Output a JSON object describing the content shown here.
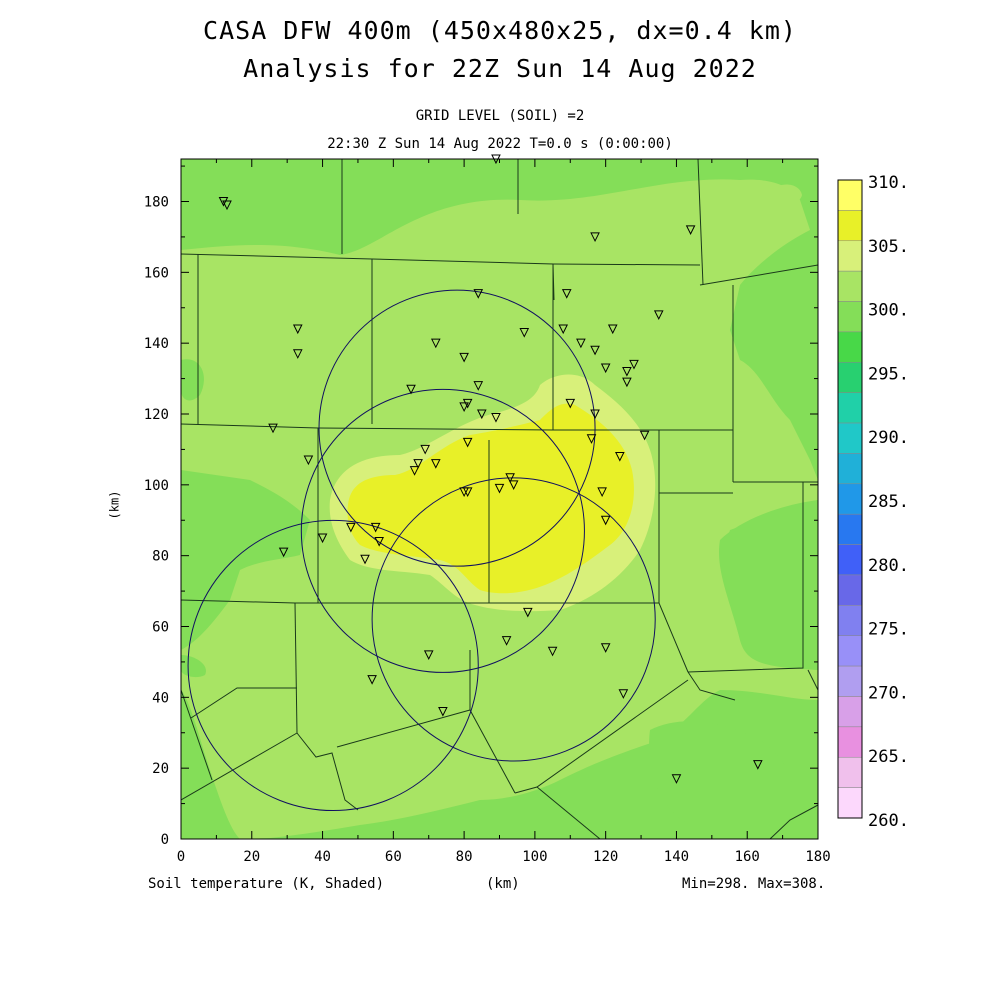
{
  "title": {
    "line1": "CASA DFW 400m (450x480x25, dx=0.4 km)",
    "line2": "Analysis for 22Z Sun 14 Aug 2022"
  },
  "subtitle": {
    "level": "GRID LEVEL (SOIL) =2",
    "time": "22:30 Z Sun 14 Aug 2022   T=0.0 s (0:00:00)"
  },
  "footer": {
    "variable": "Soil temperature (K, Shaded)",
    "xunit": "(km)",
    "minmax": "Min=298. Max=308."
  },
  "axes": {
    "ylabel": "(km)",
    "xticks": [
      "0",
      "20",
      "40",
      "60",
      "80",
      "100",
      "120",
      "140",
      "160",
      "180"
    ],
    "yticks": [
      "0",
      "20",
      "40",
      "60",
      "80",
      "100",
      "120",
      "140",
      "160",
      "180"
    ]
  },
  "colorbar": {
    "labels": [
      "310.",
      "305.",
      "300.",
      "295.",
      "290.",
      "285.",
      "280.",
      "275.",
      "270.",
      "265.",
      "260."
    ],
    "colors": [
      "#ffff66",
      "#e8f028",
      "#d8f07a",
      "#a8e464",
      "#84de58",
      "#48d848",
      "#28d070",
      "#20d0a8",
      "#20c8c8",
      "#20b0d8",
      "#2098e8",
      "#2878f0",
      "#4060f8",
      "#6868e8",
      "#8080f0",
      "#9890f8",
      "#b09ef0",
      "#d8a0e8",
      "#e890e0",
      "#f0c0ec",
      "#fcd8fc"
    ]
  },
  "map": {
    "base_color": "#84de58",
    "warm_color": "#a8e464",
    "warmer_color": "#d8f07a",
    "hot_color": "#e8f028",
    "line_color": "#1a3a1a",
    "radar_color": "#101060"
  },
  "chart_data": {
    "type": "heatmap",
    "variable": "Soil temperature (K, Shaded)",
    "grid_level": "GRID LEVEL (SOIL) =2",
    "xlabel": "(km)",
    "ylabel": "(km)",
    "xlim": [
      0,
      180
    ],
    "ylim": [
      0,
      192
    ],
    "color_levels": [
      260,
      262.5,
      265,
      267.5,
      270,
      272.5,
      275,
      277.5,
      280,
      282.5,
      285,
      287.5,
      290,
      292.5,
      295,
      297.5,
      300,
      302.5,
      305,
      307.5,
      310
    ],
    "min": 298,
    "max": 308,
    "radars": [
      {
        "x": 78,
        "y": 116,
        "radius_km": 39
      },
      {
        "x": 43,
        "y": 49,
        "radius_km": 41
      },
      {
        "x": 74,
        "y": 87,
        "radius_km": 40
      },
      {
        "x": 94,
        "y": 62,
        "radius_km": 40
      }
    ],
    "stations": [
      [
        12,
        180
      ],
      [
        13,
        179
      ],
      [
        33,
        144
      ],
      [
        33,
        137
      ],
      [
        26,
        116
      ],
      [
        36,
        107
      ],
      [
        29,
        81
      ],
      [
        40,
        85
      ],
      [
        48,
        88
      ],
      [
        55,
        88
      ],
      [
        56,
        84
      ],
      [
        52,
        79
      ],
      [
        54,
        45
      ],
      [
        65,
        127
      ],
      [
        66,
        104
      ],
      [
        67,
        106
      ],
      [
        69,
        110
      ],
      [
        72,
        106
      ],
      [
        72,
        140
      ],
      [
        80,
        136
      ],
      [
        80,
        122
      ],
      [
        81,
        123
      ],
      [
        81,
        112
      ],
      [
        80,
        98
      ],
      [
        81,
        98
      ],
      [
        84,
        154
      ],
      [
        84,
        128
      ],
      [
        85,
        120
      ],
      [
        89,
        119
      ],
      [
        89,
        192
      ],
      [
        90,
        99
      ],
      [
        93,
        102
      ],
      [
        94,
        100
      ],
      [
        97,
        143
      ],
      [
        98,
        64
      ],
      [
        92,
        56
      ],
      [
        70,
        52
      ],
      [
        74,
        36
      ],
      [
        108,
        144
      ],
      [
        109,
        154
      ],
      [
        110,
        123
      ],
      [
        113,
        140
      ],
      [
        116,
        113
      ],
      [
        117,
        138
      ],
      [
        117,
        120
      ],
      [
        117,
        170
      ],
      [
        119,
        98
      ],
      [
        120,
        90
      ],
      [
        120,
        133
      ],
      [
        122,
        144
      ],
      [
        124,
        108
      ],
      [
        126,
        132
      ],
      [
        126,
        129
      ],
      [
        128,
        134
      ],
      [
        131,
        114
      ],
      [
        135,
        148
      ],
      [
        144,
        172
      ],
      [
        120,
        54
      ],
      [
        105,
        53
      ],
      [
        125,
        41
      ],
      [
        140,
        17
      ],
      [
        163,
        21
      ]
    ]
  }
}
